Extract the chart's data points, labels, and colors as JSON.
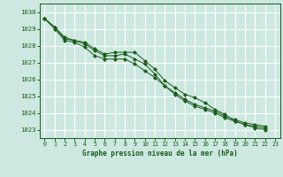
{
  "title": "Graphe pression niveau de la mer (hPa)",
  "bg_color": "#cce8e0",
  "grid_color": "#ffffff",
  "line_color": "#1a5c1a",
  "marker_color": "#1a5c1a",
  "xlim": [
    -0.5,
    23.5
  ],
  "ylim": [
    1022.5,
    1030.5
  ],
  "yticks": [
    1023,
    1024,
    1025,
    1026,
    1027,
    1028,
    1029,
    1030
  ],
  "xticks": [
    0,
    1,
    2,
    3,
    4,
    5,
    6,
    7,
    8,
    9,
    10,
    11,
    12,
    13,
    14,
    15,
    16,
    17,
    18,
    19,
    20,
    21,
    22,
    23
  ],
  "series1_x": [
    0,
    1,
    2,
    3,
    4,
    5,
    6,
    7,
    8,
    9,
    10,
    11,
    12,
    13,
    14,
    15,
    16,
    17,
    18,
    19,
    20,
    21,
    22
  ],
  "series1_y": [
    1029.6,
    1029.1,
    1028.5,
    1028.3,
    1028.2,
    1027.8,
    1027.5,
    1027.6,
    1027.6,
    1027.6,
    1027.1,
    1026.6,
    1025.9,
    1025.5,
    1025.1,
    1024.9,
    1024.6,
    1024.2,
    1023.9,
    1023.5,
    1023.3,
    1023.1,
    1023.0
  ],
  "series2_x": [
    0,
    1,
    2,
    3,
    4,
    5,
    6,
    7,
    8,
    9,
    10,
    11,
    12,
    13,
    14,
    15,
    16,
    17,
    18,
    19,
    20,
    21,
    22
  ],
  "series2_y": [
    1029.6,
    1029.1,
    1028.4,
    1028.3,
    1028.1,
    1027.7,
    1027.4,
    1027.4,
    1027.5,
    1027.2,
    1026.9,
    1026.3,
    1025.6,
    1025.1,
    1024.7,
    1024.4,
    1024.2,
    1024.0,
    1023.7,
    1023.5,
    1023.3,
    1023.2,
    1023.1
  ],
  "series3_x": [
    0,
    1,
    2,
    3,
    4,
    5,
    6,
    7,
    8,
    9,
    10,
    11,
    12,
    13,
    14,
    15,
    16,
    17,
    18,
    19,
    20,
    21,
    22
  ],
  "series3_y": [
    1029.6,
    1029.0,
    1028.3,
    1028.2,
    1027.9,
    1027.4,
    1027.2,
    1027.2,
    1027.2,
    1026.9,
    1026.5,
    1026.1,
    1025.6,
    1025.2,
    1024.8,
    1024.5,
    1024.3,
    1024.1,
    1023.8,
    1023.6,
    1023.4,
    1023.3,
    1023.2
  ]
}
